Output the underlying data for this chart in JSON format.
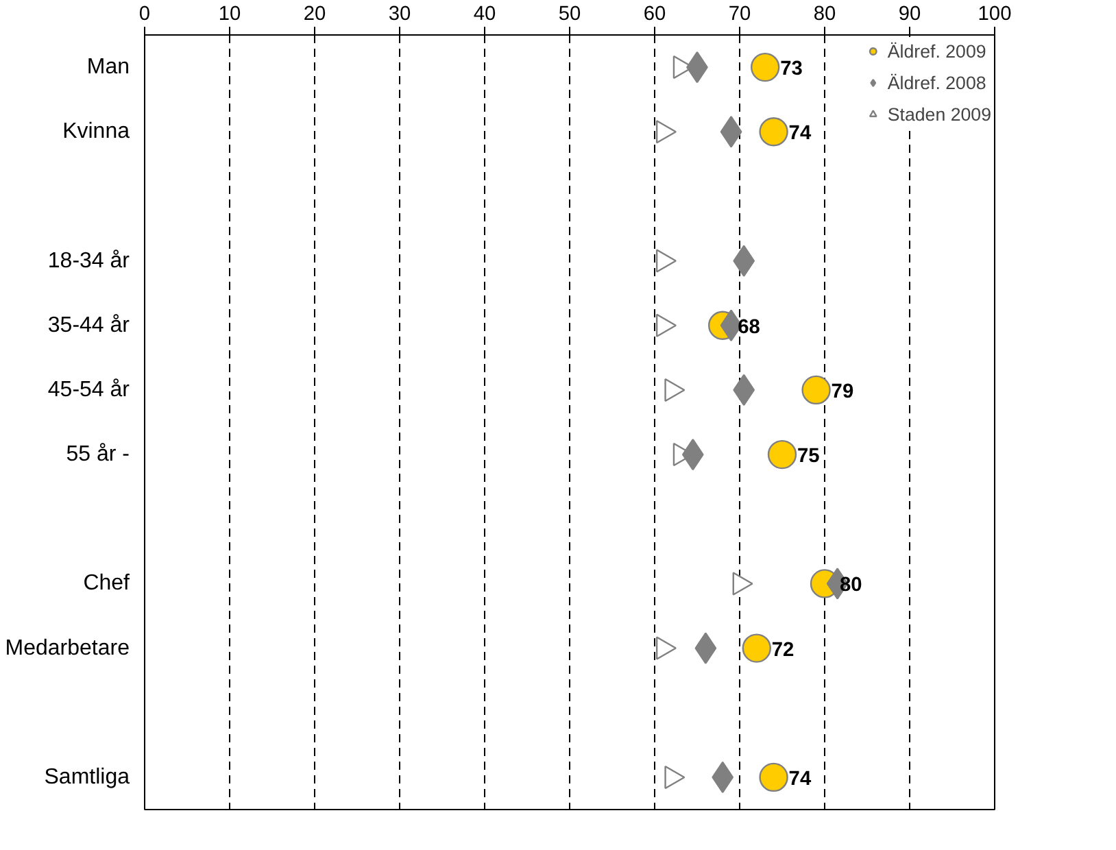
{
  "chart_data": {
    "type": "scatter",
    "orientation": "horizontal",
    "categories": [
      "Man",
      "Kvinna",
      null,
      "18-34 år",
      "35-44 år",
      "45-54 år",
      "55 år -",
      null,
      "Chef",
      "Medarbetare",
      null,
      "Samtliga"
    ],
    "xlim": [
      0,
      100
    ],
    "xticks": [
      0,
      10,
      20,
      30,
      40,
      50,
      60,
      70,
      80,
      90,
      100
    ],
    "grid": "x",
    "legend": "top right",
    "series": [
      {
        "name": "Äldref. 2009",
        "color": "#ffcc00",
        "marker": "circle",
        "values": [
          73,
          74,
          null,
          null,
          68,
          79,
          75,
          null,
          80,
          72,
          null,
          74
        ],
        "value_labels": [
          "73",
          "74",
          null,
          null,
          "68",
          "79",
          "75",
          null,
          "80",
          "72",
          null,
          "74"
        ]
      },
      {
        "name": "Äldref. 2008",
        "color": "#808080",
        "marker": "diamond",
        "values": [
          65,
          69,
          null,
          70.5,
          69,
          70.5,
          64.5,
          null,
          81.5,
          66,
          null,
          68
        ]
      },
      {
        "name": "Staden 2009",
        "color": "#ffffff",
        "marker": "triangle",
        "values": [
          63,
          61,
          null,
          61,
          61,
          62,
          63,
          null,
          70,
          61,
          null,
          62
        ]
      }
    ]
  }
}
